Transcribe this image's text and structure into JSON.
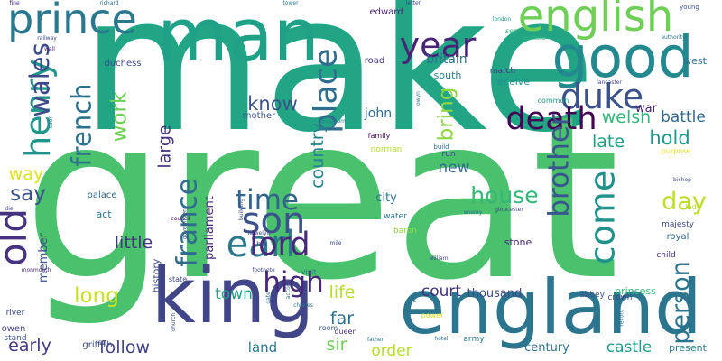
{
  "palette": {
    "background": "#ffffff",
    "colors": [
      "#440154",
      "#482878",
      "#3e4989",
      "#31688e",
      "#26828e",
      "#1f9e89",
      "#35b779",
      "#6ece58",
      "#b5de2b",
      "#fde725"
    ]
  },
  "words": [
    {
      "text": "make",
      "weight": 200,
      "color": "#21a585",
      "orientation": "horizontal"
    },
    {
      "text": "great",
      "weight": 240,
      "color": "#4ac16d",
      "orientation": "horizontal"
    },
    {
      "text": "king",
      "weight": 82,
      "color": "#404688",
      "orientation": "horizontal"
    },
    {
      "text": "england",
      "weight": 80,
      "color": "#2b758e",
      "orientation": "horizontal"
    },
    {
      "text": "man",
      "weight": 78,
      "color": "#1fa187",
      "orientation": "horizontal"
    },
    {
      "text": "good",
      "weight": 60,
      "color": "#23898e",
      "orientation": "horizontal"
    },
    {
      "text": "english",
      "weight": 46,
      "color": "#6ece58",
      "orientation": "horizontal"
    },
    {
      "text": "prince",
      "weight": 44,
      "color": "#2a788e",
      "orientation": "horizontal"
    },
    {
      "text": "duke",
      "weight": 36,
      "color": "#3b528b",
      "orientation": "horizontal"
    },
    {
      "text": "death",
      "weight": 34,
      "color": "#440154",
      "orientation": "horizontal"
    },
    {
      "text": "year",
      "weight": 36,
      "color": "#482475",
      "orientation": "horizontal"
    },
    {
      "text": "henry",
      "weight": 36,
      "color": "#1f968b",
      "orientation": "vertical"
    },
    {
      "text": "wales",
      "weight": 28,
      "color": "#3e4989",
      "orientation": "vertical"
    },
    {
      "text": "old",
      "weight": 40,
      "color": "#46327e",
      "orientation": "vertical"
    },
    {
      "text": "french",
      "weight": 28,
      "color": "#2c728e",
      "orientation": "vertical"
    },
    {
      "text": "place",
      "weight": 34,
      "color": "#2e6e8e",
      "orientation": "vertical"
    },
    {
      "text": "earl",
      "weight": 38,
      "color": "#2a788e",
      "orientation": "horizontal"
    },
    {
      "text": "son",
      "weight": 38,
      "color": "#3b528b",
      "orientation": "horizontal"
    },
    {
      "text": "lord",
      "weight": 34,
      "color": "#482878",
      "orientation": "horizontal"
    },
    {
      "text": "high",
      "weight": 30,
      "color": "#482878",
      "orientation": "horizontal"
    },
    {
      "text": "france",
      "weight": 30,
      "color": "#2f6c8e",
      "orientation": "vertical"
    },
    {
      "text": "time",
      "weight": 30,
      "color": "#33638d",
      "orientation": "horizontal"
    },
    {
      "text": "come",
      "weight": 36,
      "color": "#21918c",
      "orientation": "vertical"
    },
    {
      "text": "brother",
      "weight": 30,
      "color": "#39568c",
      "orientation": "vertical"
    },
    {
      "text": "person",
      "weight": 26,
      "color": "#2c738e",
      "orientation": "vertical"
    },
    {
      "text": "house",
      "weight": 24,
      "color": "#35b779",
      "orientation": "horizontal"
    },
    {
      "text": "day",
      "weight": 26,
      "color": "#bddf26",
      "orientation": "horizontal"
    },
    {
      "text": "long",
      "weight": 22,
      "color": "#c8e020",
      "orientation": "horizontal"
    },
    {
      "text": "work",
      "weight": 22,
      "color": "#6ece58",
      "orientation": "vertical"
    },
    {
      "text": "bring",
      "weight": 22,
      "color": "#8fd744",
      "orientation": "vertical"
    },
    {
      "text": "know",
      "weight": 20,
      "color": "#3b528b",
      "orientation": "horizontal"
    },
    {
      "text": "hold",
      "weight": 20,
      "color": "#1f988b",
      "orientation": "horizontal"
    },
    {
      "text": "welsh",
      "weight": 18,
      "color": "#34b679",
      "orientation": "horizontal"
    },
    {
      "text": "late",
      "weight": 18,
      "color": "#1fa188",
      "orientation": "horizontal"
    },
    {
      "text": "battle",
      "weight": 16,
      "color": "#31688e",
      "orientation": "horizontal"
    },
    {
      "text": "say",
      "weight": 22,
      "color": "#3b528b",
      "orientation": "horizontal"
    },
    {
      "text": "way",
      "weight": 18,
      "color": "#dde318",
      "orientation": "horizontal"
    },
    {
      "text": "large",
      "weight": 18,
      "color": "#46337f",
      "orientation": "vertical"
    },
    {
      "text": "country",
      "weight": 18,
      "color": "#26828e",
      "orientation": "vertical"
    },
    {
      "text": "new",
      "weight": 16,
      "color": "#31688e",
      "orientation": "horizontal"
    },
    {
      "text": "little",
      "weight": 18,
      "color": "#46337f",
      "orientation": "horizontal"
    },
    {
      "text": "life",
      "weight": 18,
      "color": "#b5de2b",
      "orientation": "horizontal"
    },
    {
      "text": "far",
      "weight": 18,
      "color": "#2d718e",
      "orientation": "horizontal"
    },
    {
      "text": "sir",
      "weight": 18,
      "color": "#6ece58",
      "orientation": "horizontal"
    },
    {
      "text": "court",
      "weight": 16,
      "color": "#46337f",
      "orientation": "horizontal"
    },
    {
      "text": "order",
      "weight": 16,
      "color": "#b5de2b",
      "orientation": "horizontal"
    },
    {
      "text": "early",
      "weight": 18,
      "color": "#443983",
      "orientation": "horizontal"
    },
    {
      "text": "follow",
      "weight": 18,
      "color": "#414487",
      "orientation": "horizontal"
    },
    {
      "text": "town",
      "weight": 16,
      "color": "#20a386",
      "orientation": "horizontal"
    },
    {
      "text": "land",
      "weight": 14,
      "color": "#2a788e",
      "orientation": "horizontal"
    },
    {
      "text": "castle",
      "weight": 16,
      "color": "#1f9e89",
      "orientation": "horizontal"
    },
    {
      "text": "century",
      "weight": 12,
      "color": "#2c728e",
      "orientation": "horizontal"
    },
    {
      "text": "present",
      "weight": 11,
      "color": "#287d8e",
      "orientation": "horizontal"
    },
    {
      "text": "princess",
      "weight": 11,
      "color": "#35b779",
      "orientation": "horizontal"
    },
    {
      "text": "thousand",
      "weight": 12,
      "color": "#3e4989",
      "orientation": "horizontal"
    },
    {
      "text": "member",
      "weight": 12,
      "color": "#3b528b",
      "orientation": "vertical"
    },
    {
      "text": "history",
      "weight": 11,
      "color": "#3e4989",
      "orientation": "vertical"
    },
    {
      "text": "parliament",
      "weight": 12,
      "color": "#482878",
      "orientation": "vertical"
    },
    {
      "text": "mother",
      "weight": 10,
      "color": "#39568c",
      "orientation": "horizontal"
    },
    {
      "text": "city",
      "weight": 12,
      "color": "#2c728e",
      "orientation": "horizontal"
    },
    {
      "text": "stone",
      "weight": 11,
      "color": "#482878",
      "orientation": "horizontal"
    },
    {
      "text": "john",
      "weight": 13,
      "color": "#31688e",
      "orientation": "horizontal"
    },
    {
      "text": "britain",
      "weight": 13,
      "color": "#2c728e",
      "orientation": "horizontal"
    },
    {
      "text": "edward",
      "weight": 10,
      "color": "#482475",
      "orientation": "horizontal"
    },
    {
      "text": "duchess",
      "weight": 10,
      "color": "#3e4989",
      "orientation": "horizontal"
    },
    {
      "text": "war",
      "weight": 12,
      "color": "#481f70",
      "orientation": "horizontal"
    },
    {
      "text": "west",
      "weight": 11,
      "color": "#2e6e8e",
      "orientation": "horizontal"
    },
    {
      "text": "receive",
      "weight": 11,
      "color": "#21918c",
      "orientation": "horizontal"
    },
    {
      "text": "march",
      "weight": 9,
      "color": "#443983",
      "orientation": "horizontal"
    },
    {
      "text": "road",
      "weight": 10,
      "color": "#46337f",
      "orientation": "horizontal"
    },
    {
      "text": "south",
      "weight": 11,
      "color": "#287d8e",
      "orientation": "horizontal"
    },
    {
      "text": "palace",
      "weight": 10,
      "color": "#31688e",
      "orientation": "horizontal"
    },
    {
      "text": "act",
      "weight": 11,
      "color": "#2a788e",
      "orientation": "horizontal"
    },
    {
      "text": "royal",
      "weight": 10,
      "color": "#31688e",
      "orientation": "horizontal"
    },
    {
      "text": "majesty",
      "weight": 9,
      "color": "#3e4989",
      "orientation": "horizontal"
    },
    {
      "text": "child",
      "weight": 9,
      "color": "#46337f",
      "orientation": "horizontal"
    },
    {
      "text": "abbey",
      "weight": 9,
      "color": "#3b528b",
      "orientation": "horizontal"
    },
    {
      "text": "crown",
      "weight": 9,
      "color": "#3e4989",
      "orientation": "horizontal"
    },
    {
      "text": "owen",
      "weight": 10,
      "color": "#414487",
      "orientation": "horizontal"
    },
    {
      "text": "river",
      "weight": 9,
      "color": "#3e4989",
      "orientation": "horizontal"
    },
    {
      "text": "stand",
      "weight": 9,
      "color": "#39568c",
      "orientation": "horizontal"
    },
    {
      "text": "griffith",
      "weight": 10,
      "color": "#3e4989",
      "orientation": "horizontal"
    },
    {
      "text": "army",
      "weight": 9,
      "color": "#2a788e",
      "orientation": "horizontal"
    },
    {
      "text": "room",
      "weight": 8,
      "color": "#39568c",
      "orientation": "horizontal"
    },
    {
      "text": "queen",
      "weight": 8,
      "color": "#46327e",
      "orientation": "horizontal"
    },
    {
      "text": "water",
      "weight": 9,
      "color": "#2c728e",
      "orientation": "horizontal"
    },
    {
      "text": "baron",
      "weight": 9,
      "color": "#8fd744",
      "orientation": "horizontal"
    },
    {
      "text": "norman",
      "weight": 9,
      "color": "#b5de2b",
      "orientation": "horizontal"
    },
    {
      "text": "run",
      "weight": 9,
      "color": "#3e4989",
      "orientation": "horizontal"
    },
    {
      "text": "family",
      "weight": 8,
      "color": "#440154",
      "orientation": "horizontal"
    },
    {
      "text": "purpose",
      "weight": 8,
      "color": "#dde318",
      "orientation": "horizontal"
    },
    {
      "text": "lady",
      "weight": 8,
      "color": "#b5de2b",
      "orientation": "horizontal"
    },
    {
      "text": "power",
      "weight": 8,
      "color": "#dde318",
      "orientation": "horizontal"
    },
    {
      "text": "state",
      "weight": 8,
      "color": "#3e4989",
      "orientation": "horizontal"
    },
    {
      "text": "hill",
      "weight": 8,
      "color": "#3e4989",
      "orientation": "horizontal"
    },
    {
      "text": "visit",
      "weight": 8,
      "color": "#2a788e",
      "orientation": "horizontal"
    },
    {
      "text": "common",
      "weight": 8,
      "color": "#1f9e89",
      "orientation": "horizontal"
    },
    {
      "text": "sea",
      "weight": 8,
      "color": "#35b779",
      "orientation": "horizontal"
    },
    {
      "text": "build",
      "weight": 7,
      "color": "#2c728e",
      "orientation": "horizontal"
    },
    {
      "text": "fine",
      "weight": 6,
      "color": "#482878",
      "orientation": "horizontal"
    },
    {
      "text": "richard",
      "weight": 6,
      "color": "#2c728e",
      "orientation": "horizontal"
    },
    {
      "text": "tower",
      "weight": 6,
      "color": "#2a788e",
      "orientation": "horizontal"
    },
    {
      "text": "letter",
      "weight": 6,
      "color": "#3e4989",
      "orientation": "horizontal"
    },
    {
      "text": "young",
      "weight": 7,
      "color": "#3b528b",
      "orientation": "horizontal"
    },
    {
      "text": "authority",
      "weight": 6,
      "color": "#2c728e",
      "orientation": "horizontal"
    },
    {
      "text": "london",
      "weight": 6,
      "color": "#1f9e89",
      "orientation": "horizontal"
    },
    {
      "text": "scotland",
      "weight": 5,
      "color": "#35b779",
      "orientation": "horizontal"
    },
    {
      "text": "railway",
      "weight": 6,
      "color": "#3e4989",
      "orientation": "horizontal"
    },
    {
      "text": "wall",
      "weight": 6,
      "color": "#482878",
      "orientation": "horizontal"
    },
    {
      "text": "kingdom",
      "weight": 5,
      "color": "#287d8e",
      "orientation": "horizontal"
    },
    {
      "text": "lancaster",
      "weight": 5,
      "color": "#3e4989",
      "orientation": "horizontal"
    },
    {
      "text": "bishop",
      "weight": 5,
      "color": "#3e4989",
      "orientation": "horizontal"
    },
    {
      "text": "gloucester",
      "weight": 5,
      "color": "#3e4989",
      "orientation": "horizontal"
    },
    {
      "text": "council",
      "weight": 5,
      "color": "#440154",
      "orientation": "horizontal"
    },
    {
      "text": "government",
      "weight": 5,
      "color": "#3e4989",
      "orientation": "vertical"
    },
    {
      "text": "building",
      "weight": 5,
      "color": "#3e4989",
      "orientation": "vertical"
    },
    {
      "text": "footnote",
      "weight": 6,
      "color": "#3e4989",
      "orientation": "horizontal"
    },
    {
      "text": "llewelyn",
      "weight": 5,
      "color": "#3e4989",
      "orientation": "horizontal"
    },
    {
      "text": "mile",
      "weight": 5,
      "color": "#3e4989",
      "orientation": "horizontal"
    },
    {
      "text": "william",
      "weight": 5,
      "color": "#3e4989",
      "orientation": "horizontal"
    },
    {
      "text": "enemy",
      "weight": 6,
      "color": "#2c728e",
      "orientation": "horizontal"
    },
    {
      "text": "charles",
      "weight": 5,
      "color": "#2c728e",
      "orientation": "horizontal"
    },
    {
      "text": "father",
      "weight": 5,
      "color": "#2c728e",
      "orientation": "horizontal"
    },
    {
      "text": "hotel",
      "weight": 5,
      "color": "#2c728e",
      "orientation": "horizontal"
    },
    {
      "text": "church",
      "weight": 5,
      "color": "#3e4989",
      "orientation": "vertical"
    },
    {
      "text": "monmouth",
      "weight": 5,
      "color": "#482878",
      "orientation": "horizontal"
    },
    {
      "text": "die",
      "weight": 5,
      "color": "#3e4989",
      "orientation": "horizontal"
    },
    {
      "text": "date",
      "weight": 5,
      "color": "#2c728e",
      "orientation": "vertical"
    },
    {
      "text": "accor",
      "weight": 4,
      "color": "#2c728e",
      "orientation": "vertical"
    },
    {
      "text": "vol",
      "weight": 5,
      "color": "#2c728e",
      "orientation": "vertical"
    },
    {
      "text": "owyn",
      "weight": 4,
      "color": "#2c728e",
      "orientation": "vertical"
    },
    {
      "text": "record",
      "weight": 4,
      "color": "#2c728e",
      "orientation": "vertical"
    },
    {
      "text": "soon",
      "weight": 5,
      "color": "#2c728e",
      "orientation": "vertical"
    }
  ]
}
